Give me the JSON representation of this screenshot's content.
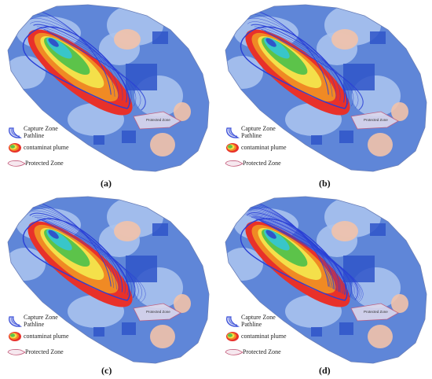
{
  "figure": {
    "panels": [
      {
        "id": "a",
        "caption": "(a)",
        "density": 9
      },
      {
        "id": "b",
        "caption": "(b)",
        "density": 9
      },
      {
        "id": "c",
        "caption": "(c)",
        "density": 12
      },
      {
        "id": "d",
        "caption": "(d)",
        "density": 24
      }
    ],
    "legend": {
      "capture_zone": "Capture Zone",
      "pathline": "Pathline",
      "plume": "contaminat plume",
      "protected": "Protected Zone"
    },
    "map_label": "Protected Zone"
  },
  "colors": {
    "background_blue": "#5f86d8",
    "light_blue": "#a9c2ee",
    "peach": "#f2c2aa",
    "dark_blue": "#2f55c9",
    "pathline": "#2a3fd6",
    "plume_red": "#e8312a",
    "plume_orange": "#f08a24",
    "plume_yellow": "#f4e04a",
    "plume_green": "#5cc34a",
    "plume_cyan": "#38c6c9",
    "protected_outline": "#c35a7a"
  }
}
